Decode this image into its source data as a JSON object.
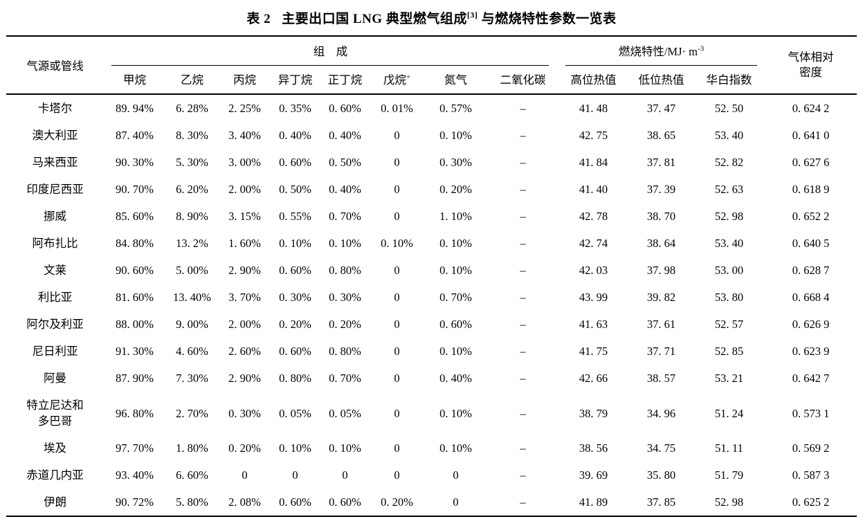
{
  "title": {
    "index": "表 2",
    "main": "主要出口国 LNG 典型燃气组成",
    "citation": "[3]",
    "tail": " 与燃烧特性参数一览表"
  },
  "header": {
    "source_column": "气源或管线",
    "composition_group": "组　成",
    "combustion_group": "燃烧特性/MJ· m",
    "combustion_group_sup": "-3",
    "density_column_line1": "气体相对",
    "density_column_line2": "密度",
    "columns": [
      {
        "text": "甲烷",
        "sup": ""
      },
      {
        "text": "乙烷",
        "sup": ""
      },
      {
        "text": "丙烷",
        "sup": ""
      },
      {
        "text": "异丁烷",
        "sup": ""
      },
      {
        "text": "正丁烷",
        "sup": ""
      },
      {
        "text": "戊烷",
        "sup": "+"
      },
      {
        "text": "氮气",
        "sup": ""
      },
      {
        "text": "二氧化碳",
        "sup": ""
      },
      {
        "text": "高位热值",
        "sup": ""
      },
      {
        "text": "低位热值",
        "sup": ""
      },
      {
        "text": "华白指数",
        "sup": ""
      }
    ]
  },
  "rows": [
    {
      "name_lines": [
        "卡塔尔"
      ],
      "values": [
        "89. 94%",
        "6. 28%",
        "2. 25%",
        "0. 35%",
        "0. 60%",
        "0. 01%",
        "0. 57%",
        "–",
        "41. 48",
        "37. 47",
        "52. 50",
        "0. 624 2"
      ]
    },
    {
      "name_lines": [
        "澳大利亚"
      ],
      "values": [
        "87. 40%",
        "8. 30%",
        "3. 40%",
        "0. 40%",
        "0. 40%",
        "0",
        "0. 10%",
        "–",
        "42. 75",
        "38. 65",
        "53. 40",
        "0. 641 0"
      ]
    },
    {
      "name_lines": [
        "马来西亚"
      ],
      "values": [
        "90. 30%",
        "5. 30%",
        "3. 00%",
        "0. 60%",
        "0. 50%",
        "0",
        "0. 30%",
        "–",
        "41. 84",
        "37. 81",
        "52. 82",
        "0. 627 6"
      ]
    },
    {
      "name_lines": [
        "印度尼西亚"
      ],
      "values": [
        "90. 70%",
        "6. 20%",
        "2. 00%",
        "0. 50%",
        "0. 40%",
        "0",
        "0. 20%",
        "–",
        "41. 40",
        "37. 39",
        "52. 63",
        "0. 618 9"
      ]
    },
    {
      "name_lines": [
        "挪威"
      ],
      "values": [
        "85. 60%",
        "8. 90%",
        "3. 15%",
        "0. 55%",
        "0. 70%",
        "0",
        "1. 10%",
        "–",
        "42. 78",
        "38. 70",
        "52. 98",
        "0. 652 2"
      ]
    },
    {
      "name_lines": [
        "阿布扎比"
      ],
      "values": [
        "84. 80%",
        "13. 2%",
        "1. 60%",
        "0. 10%",
        "0. 10%",
        "0. 10%",
        "0. 10%",
        "–",
        "42. 74",
        "38. 64",
        "53. 40",
        "0. 640 5"
      ]
    },
    {
      "name_lines": [
        "文莱"
      ],
      "values": [
        "90. 60%",
        "5. 00%",
        "2. 90%",
        "0. 60%",
        "0. 80%",
        "0",
        "0. 10%",
        "–",
        "42. 03",
        "37. 98",
        "53. 00",
        "0. 628 7"
      ]
    },
    {
      "name_lines": [
        "利比亚"
      ],
      "values": [
        "81. 60%",
        "13. 40%",
        "3. 70%",
        "0. 30%",
        "0. 30%",
        "0",
        "0. 70%",
        "–",
        "43. 99",
        "39. 82",
        "53. 80",
        "0. 668 4"
      ]
    },
    {
      "name_lines": [
        "阿尔及利亚"
      ],
      "values": [
        "88. 00%",
        "9. 00%",
        "2. 00%",
        "0. 20%",
        "0. 20%",
        "0",
        "0. 60%",
        "–",
        "41. 63",
        "37. 61",
        "52. 57",
        "0. 626 9"
      ]
    },
    {
      "name_lines": [
        "尼日利亚"
      ],
      "values": [
        "91. 30%",
        "4. 60%",
        "2. 60%",
        "0. 60%",
        "0. 80%",
        "0",
        "0. 10%",
        "–",
        "41. 75",
        "37. 71",
        "52. 85",
        "0. 623 9"
      ]
    },
    {
      "name_lines": [
        "阿曼"
      ],
      "values": [
        "87. 90%",
        "7. 30%",
        "2. 90%",
        "0. 80%",
        "0. 70%",
        "0",
        "0. 40%",
        "–",
        "42. 66",
        "38. 57",
        "53. 21",
        "0. 642 7"
      ]
    },
    {
      "name_lines": [
        "特立尼达和",
        "多巴哥"
      ],
      "values": [
        "96. 80%",
        "2. 70%",
        "0. 30%",
        "0. 05%",
        "0. 05%",
        "0",
        "0. 10%",
        "–",
        "38. 79",
        "34. 96",
        "51. 24",
        "0. 573 1"
      ]
    },
    {
      "name_lines": [
        "埃及"
      ],
      "values": [
        "97. 70%",
        "1. 80%",
        "0. 20%",
        "0. 10%",
        "0. 10%",
        "0",
        "0. 10%",
        "–",
        "38. 56",
        "34. 75",
        "51. 11",
        "0. 569 2"
      ]
    },
    {
      "name_lines": [
        "赤道几内亚"
      ],
      "values": [
        "93. 40%",
        "6. 60%",
        "0",
        "0",
        "0",
        "0",
        "0",
        "–",
        "39. 69",
        "35. 80",
        "51. 79",
        "0. 587 3"
      ]
    },
    {
      "name_lines": [
        "伊朗"
      ],
      "values": [
        "90. 72%",
        "5. 80%",
        "2. 08%",
        "0. 60%",
        "0. 60%",
        "0. 20%",
        "0",
        "–",
        "41. 89",
        "37. 85",
        "52. 98",
        "0. 625 2"
      ]
    }
  ]
}
